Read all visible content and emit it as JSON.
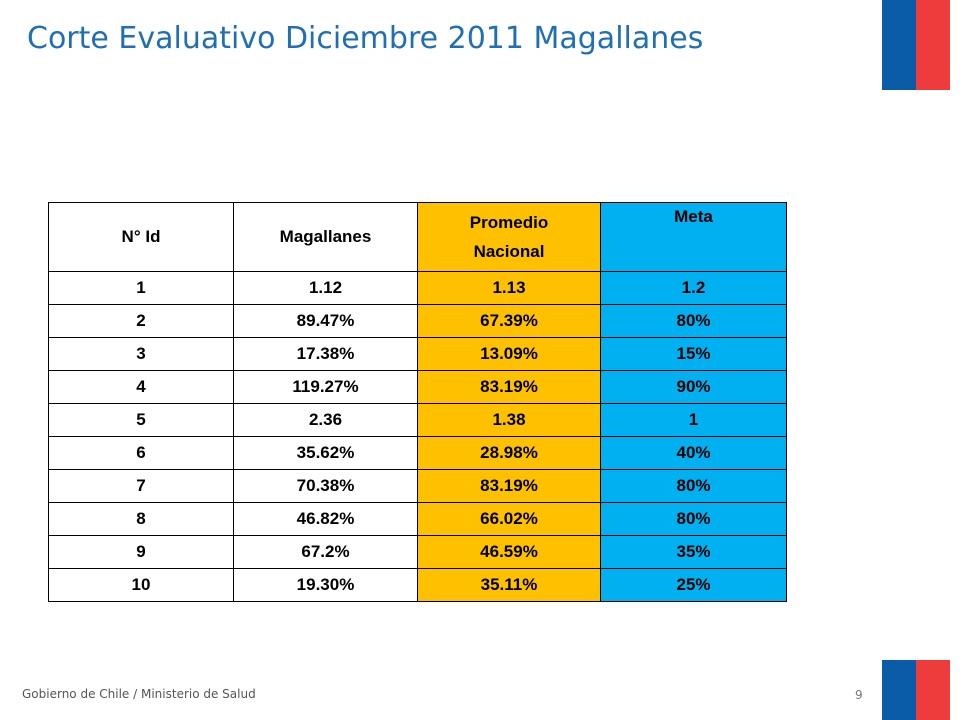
{
  "slide": {
    "title": "Corte Evaluativo Diciembre 2011 Magallanes",
    "footer": "Gobierno de Chile / Ministerio de Salud",
    "page_number": "9"
  },
  "colors": {
    "title": "#1f6fb5",
    "promedio_fill": "#ffc000",
    "meta_fill": "#00b0f0",
    "flag_blue": "#0b5ca8",
    "flag_red": "#ee3b3b"
  },
  "table": {
    "headers": {
      "id": "N° Id",
      "magallanes": "Magallanes",
      "promedio_line1": "Promedio",
      "promedio_line2": "Nacional",
      "meta": "Meta"
    },
    "rows": [
      {
        "id": "1",
        "magallanes": "1.12",
        "promedio": "1.13",
        "meta": "1.2"
      },
      {
        "id": "2",
        "magallanes": "89.47%",
        "promedio": "67.39%",
        "meta": "80%"
      },
      {
        "id": "3",
        "magallanes": "17.38%",
        "promedio": "13.09%",
        "meta": "15%"
      },
      {
        "id": "4",
        "magallanes": "119.27%",
        "promedio": "83.19%",
        "meta": "90%"
      },
      {
        "id": "5",
        "magallanes": "2.36",
        "promedio": "1.38",
        "meta": "1"
      },
      {
        "id": "6",
        "magallanes": "35.62%",
        "promedio": "28.98%",
        "meta": "40%"
      },
      {
        "id": "7",
        "magallanes": "70.38%",
        "promedio": "83.19%",
        "meta": "80%"
      },
      {
        "id": "8",
        "magallanes": "46.82%",
        "promedio": "66.02%",
        "meta": "80%"
      },
      {
        "id": "9",
        "magallanes": "67.2%",
        "promedio": "46.59%",
        "meta": "35%"
      },
      {
        "id": "10",
        "magallanes": "19.30%",
        "promedio": "35.11%",
        "meta": "25%"
      }
    ]
  }
}
